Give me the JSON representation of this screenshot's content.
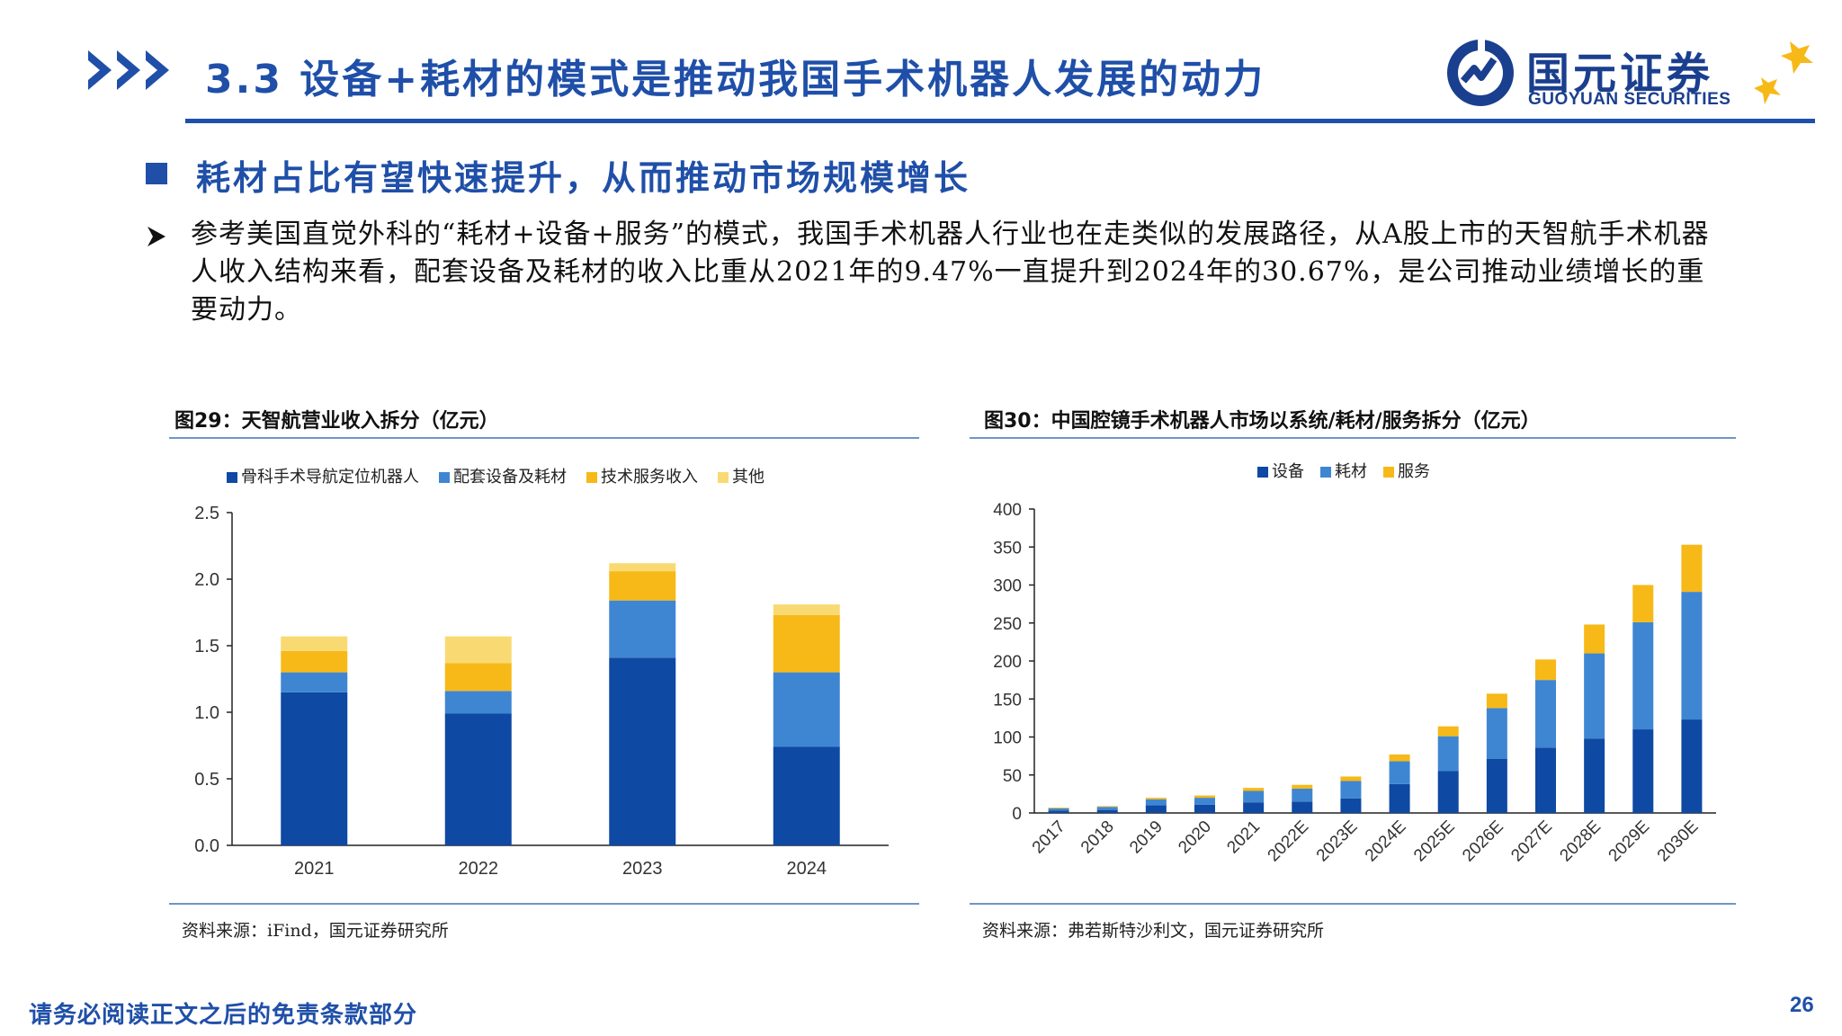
{
  "header": {
    "title": "3.3 设备+耗材的模式是推动我国手术机器人发展的动力",
    "logo_cn": "国元证券",
    "logo_en": "GUOYUAN SECURITIES"
  },
  "section": {
    "title": "耗材占比有望快速提升，从而推动市场规模增长",
    "paragraph": "参考美国直觉外科的“耗材+设备+服务”的模式，我国手术机器人行业也在走类似的发展路径，从A股上市的天智航手术机器人收入结构来看，配套设备及耗材的收入比重从2021年的9.47%一直提升到2024年的30.67%，是公司推动业绩增长的重要动力。"
  },
  "colors": {
    "brand": "#1f4fa8",
    "navy": "#0e49a3",
    "mid_blue": "#3f86d2",
    "gold": "#f7b918",
    "light_gold": "#f9da72"
  },
  "chart1": {
    "title": "图29：天智航营业收入拆分（亿元）",
    "source": "资料来源：iFind，国元证券研究所"
  },
  "chart2": {
    "title": "图30：中国腔镜手术机器人市场以系统/耗材/服务拆分（亿元）",
    "source": "资料来源：弗若斯特沙利文，国元证券研究所"
  },
  "chart_data": [
    {
      "type": "bar",
      "stacked": true,
      "title": "图29：天智航营业收入拆分（亿元）",
      "categories": [
        "2021",
        "2022",
        "2023",
        "2024"
      ],
      "ylim": [
        0,
        2.5
      ],
      "yticks": [
        "0.0",
        "0.5",
        "1.0",
        "1.5",
        "2.0",
        "2.5"
      ],
      "legend_position": "top",
      "series": [
        {
          "name": "骨科手术导航定位机器人",
          "color": "#0e49a3",
          "values": [
            1.15,
            0.99,
            1.41,
            0.74
          ]
        },
        {
          "name": "配套设备及耗材",
          "color": "#3f86d2",
          "values": [
            0.15,
            0.17,
            0.43,
            0.56
          ]
        },
        {
          "name": "技术服务收入",
          "color": "#f7b918",
          "values": [
            0.16,
            0.21,
            0.22,
            0.43
          ]
        },
        {
          "name": "其他",
          "color": "#f9da72",
          "values": [
            0.11,
            0.2,
            0.06,
            0.08
          ]
        }
      ]
    },
    {
      "type": "bar",
      "stacked": true,
      "title": "图30：中国腔镜手术机器人市场以系统/耗材/服务拆分（亿元）",
      "categories": [
        "2017",
        "2018",
        "2019",
        "2020",
        "2021",
        "2022E",
        "2023E",
        "2024E",
        "2025E",
        "2026E",
        "2027E",
        "2028E",
        "2029E",
        "2030E"
      ],
      "ylim": [
        0,
        400
      ],
      "yticks": [
        "0",
        "50",
        "100",
        "150",
        "200",
        "250",
        "300",
        "350",
        "400"
      ],
      "legend_position": "top",
      "series": [
        {
          "name": "设备",
          "color": "#0e49a3",
          "values": [
            3,
            4,
            10,
            11,
            14,
            15,
            19,
            38,
            55,
            71,
            86,
            98,
            110,
            123
          ]
        },
        {
          "name": "耗材",
          "color": "#3f86d2",
          "values": [
            3,
            4,
            8,
            9,
            15,
            17,
            23,
            30,
            46,
            67,
            89,
            112,
            141,
            168
          ]
        },
        {
          "name": "服务",
          "color": "#f7b918",
          "values": [
            1,
            1,
            2,
            3,
            4,
            5,
            6,
            9,
            13,
            19,
            27,
            38,
            49,
            62
          ]
        }
      ]
    }
  ],
  "footer": {
    "disclaimer": "请务必阅读正文之后的免责条款部分",
    "page": "26"
  }
}
